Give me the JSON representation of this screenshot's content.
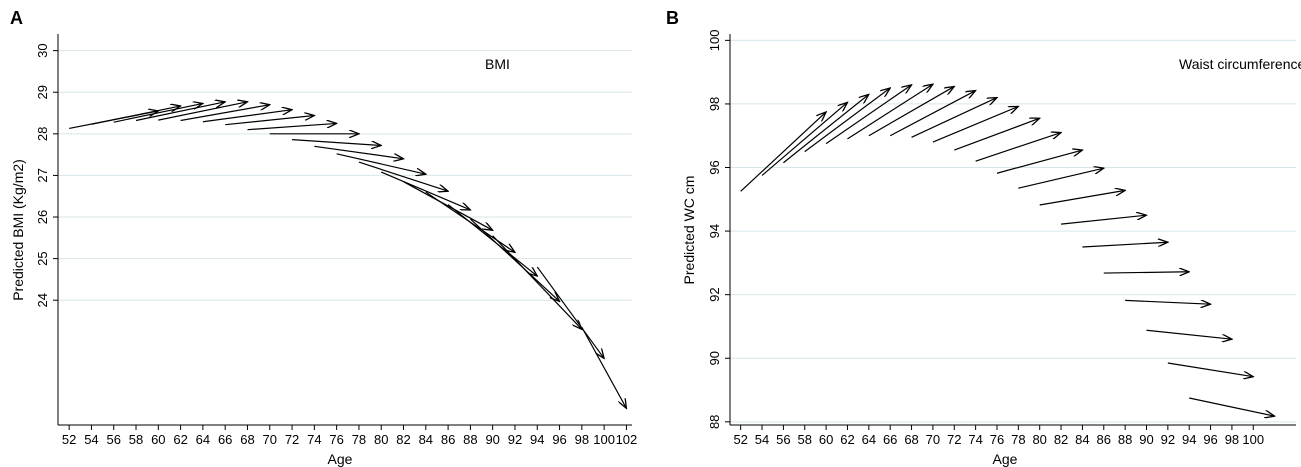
{
  "chart_data": [
    {
      "panel": "A",
      "type": "arrow",
      "annotation": "BMI",
      "xlabel": "Age",
      "ylabel": "Predicted BMI (Kg/m2)",
      "xlim": [
        51,
        102.5
      ],
      "ylim": [
        21,
        30.4
      ],
      "x_ticks": [
        "52",
        "54",
        "56",
        "58",
        "60",
        "62",
        "64",
        "66",
        "68",
        "70",
        "72",
        "74",
        "76",
        "78",
        "80",
        "82",
        "84",
        "86",
        "88",
        "90",
        "92",
        "94",
        "96",
        "98",
        "100",
        "102"
      ],
      "y_ticks": [
        24,
        25,
        26,
        27,
        28,
        29,
        30
      ],
      "grid": true,
      "arrows": [
        {
          "x0": 52,
          "y0": 28.13,
          "x1": 60,
          "y1": 28.55
        },
        {
          "x0": 54,
          "y0": 28.23,
          "x1": 62,
          "y1": 28.67
        },
        {
          "x0": 56,
          "y0": 28.28,
          "x1": 64,
          "y1": 28.73
        },
        {
          "x0": 58,
          "y0": 28.32,
          "x1": 66,
          "y1": 28.77
        },
        {
          "x0": 60,
          "y0": 28.33,
          "x1": 68,
          "y1": 28.77
        },
        {
          "x0": 62,
          "y0": 28.32,
          "x1": 70,
          "y1": 28.7
        },
        {
          "x0": 64,
          "y0": 28.29,
          "x1": 72,
          "y1": 28.58
        },
        {
          "x0": 66,
          "y0": 28.22,
          "x1": 74,
          "y1": 28.44
        },
        {
          "x0": 68,
          "y0": 28.1,
          "x1": 76,
          "y1": 28.25
        },
        {
          "x0": 70,
          "y0": 28.0,
          "x1": 78,
          "y1": 28.0
        },
        {
          "x0": 72,
          "y0": 27.86,
          "x1": 80,
          "y1": 27.72
        },
        {
          "x0": 74,
          "y0": 27.7,
          "x1": 82,
          "y1": 27.4
        },
        {
          "x0": 76,
          "y0": 27.52,
          "x1": 84,
          "y1": 27.03
        },
        {
          "x0": 78,
          "y0": 27.32,
          "x1": 86,
          "y1": 26.62
        },
        {
          "x0": 80,
          "y0": 27.08,
          "x1": 88,
          "y1": 26.17
        },
        {
          "x0": 82,
          "y0": 26.85,
          "x1": 90,
          "y1": 25.68
        },
        {
          "x0": 84,
          "y0": 26.6,
          "x1": 92,
          "y1": 25.15
        },
        {
          "x0": 86,
          "y0": 26.3,
          "x1": 94,
          "y1": 24.58
        },
        {
          "x0": 88,
          "y0": 25.95,
          "x1": 96,
          "y1": 23.97
        },
        {
          "x0": 90,
          "y0": 25.55,
          "x1": 98,
          "y1": 23.3
        },
        {
          "x0": 94,
          "y0": 24.8,
          "x1": 100,
          "y1": 22.6
        },
        {
          "x0": 98,
          "y0": 23.35,
          "x1": 102,
          "y1": 21.4
        }
      ]
    },
    {
      "panel": "B",
      "type": "arrow",
      "annotation": "Waist circumference",
      "xlabel": "Age",
      "ylabel": "Predicted WC cm",
      "xlim": [
        51,
        104
      ],
      "ylim": [
        87.9,
        100.2
      ],
      "x_ticks": [
        "52",
        "54",
        "56",
        "58",
        "60",
        "62",
        "64",
        "66",
        "68",
        "70",
        "72",
        "74",
        "76",
        "78",
        "80",
        "82",
        "84",
        "86",
        "88",
        "90",
        "92",
        "94",
        "96",
        "98",
        "100"
      ],
      "y_ticks": [
        88,
        90,
        92,
        94,
        96,
        98,
        100
      ],
      "grid": true,
      "arrows": [
        {
          "x0": 52,
          "y0": 95.25,
          "x1": 60,
          "y1": 97.75
        },
        {
          "x0": 54,
          "y0": 95.75,
          "x1": 62,
          "y1": 98.05
        },
        {
          "x0": 56,
          "y0": 96.15,
          "x1": 64,
          "y1": 98.3
        },
        {
          "x0": 58,
          "y0": 96.5,
          "x1": 66,
          "y1": 98.5
        },
        {
          "x0": 60,
          "y0": 96.75,
          "x1": 68,
          "y1": 98.6
        },
        {
          "x0": 62,
          "y0": 96.9,
          "x1": 70,
          "y1": 98.62
        },
        {
          "x0": 64,
          "y0": 97.0,
          "x1": 72,
          "y1": 98.55
        },
        {
          "x0": 66,
          "y0": 97.0,
          "x1": 74,
          "y1": 98.42
        },
        {
          "x0": 68,
          "y0": 96.95,
          "x1": 76,
          "y1": 98.2
        },
        {
          "x0": 70,
          "y0": 96.8,
          "x1": 78,
          "y1": 97.92
        },
        {
          "x0": 72,
          "y0": 96.55,
          "x1": 80,
          "y1": 97.55
        },
        {
          "x0": 74,
          "y0": 96.2,
          "x1": 82,
          "y1": 97.1
        },
        {
          "x0": 76,
          "y0": 95.82,
          "x1": 84,
          "y1": 96.55
        },
        {
          "x0": 78,
          "y0": 95.35,
          "x1": 86,
          "y1": 95.98
        },
        {
          "x0": 80,
          "y0": 94.82,
          "x1": 88,
          "y1": 95.28
        },
        {
          "x0": 82,
          "y0": 94.22,
          "x1": 90,
          "y1": 94.5
        },
        {
          "x0": 84,
          "y0": 93.5,
          "x1": 92,
          "y1": 93.65
        },
        {
          "x0": 86,
          "y0": 92.68,
          "x1": 94,
          "y1": 92.72
        },
        {
          "x0": 88,
          "y0": 91.82,
          "x1": 96,
          "y1": 91.7
        },
        {
          "x0": 90,
          "y0": 90.88,
          "x1": 98,
          "y1": 90.6
        },
        {
          "x0": 92,
          "y0": 89.85,
          "x1": 100,
          "y1": 89.42
        },
        {
          "x0": 94,
          "y0": 88.75,
          "x1": 102,
          "y1": 88.18
        }
      ]
    }
  ]
}
